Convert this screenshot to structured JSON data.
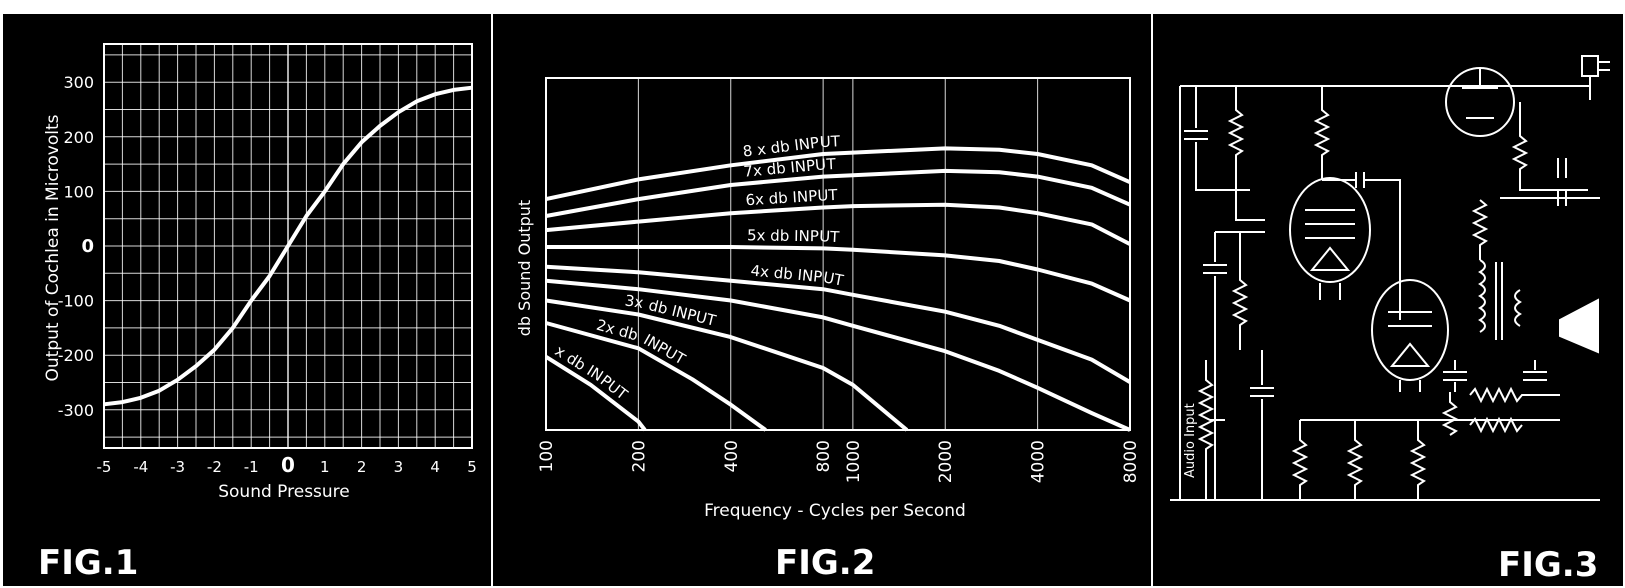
{
  "figures": {
    "fig1": {
      "label": "FIG.1"
    },
    "fig2": {
      "label": "FIG.2"
    },
    "fig3": {
      "label": "FIG.3",
      "input_label": "Audio Input"
    }
  },
  "colors": {
    "background": "#000000",
    "ink": "#ffffff",
    "page": "#ffffff"
  },
  "chart_data": [
    {
      "type": "line",
      "xlabel": "Sound Pressure",
      "ylabel": "Output of Cochlea in Microvolts",
      "xlim": [
        -5,
        5
      ],
      "ylim": [
        -370,
        370
      ],
      "x_ticks": [
        "-5",
        "-4",
        "-3",
        "-2",
        "-1",
        "0",
        "1",
        "2",
        "3",
        "4",
        "5"
      ],
      "y_ticks": [
        "300",
        "200",
        "100",
        "0",
        "-100",
        "-200",
        "-300"
      ],
      "grid": true,
      "series": [
        {
          "x": [
            -5,
            -4.5,
            -4,
            -3.5,
            -3,
            -2.5,
            -2,
            -1.5,
            -1,
            -0.5,
            0,
            0.5,
            1,
            1.5,
            2,
            2.5,
            3,
            3.5,
            4,
            4.5,
            5
          ],
          "values": [
            -290,
            -286,
            -278,
            -265,
            -245,
            -220,
            -190,
            -150,
            -100,
            -55,
            0,
            55,
            100,
            150,
            190,
            220,
            245,
            265,
            278,
            286,
            290
          ]
        }
      ]
    },
    {
      "type": "line",
      "xlabel": "Frequency - Cycles per Second",
      "ylabel": "db Sound Output",
      "x_scale": "log",
      "x_ticks": [
        "100",
        "200",
        "400",
        "800",
        "1000",
        "2000",
        "4000",
        "8000"
      ],
      "grid": true,
      "series": [
        {
          "name": "8 x db INPUT",
          "x": [
            100,
            200,
            400,
            800,
            1000,
            2000,
            3000,
            4000,
            6000,
            8000
          ],
          "values": [
            8.2,
            8.9,
            9.4,
            9.8,
            9.85,
            10.0,
            9.95,
            9.8,
            9.4,
            8.8
          ]
        },
        {
          "name": "7x db INPUT",
          "x": [
            100,
            200,
            400,
            800,
            1000,
            2000,
            3000,
            4000,
            6000,
            8000
          ],
          "values": [
            7.6,
            8.2,
            8.7,
            9.0,
            9.05,
            9.2,
            9.15,
            9.0,
            8.6,
            8.0
          ]
        },
        {
          "name": "6x db INPUT",
          "x": [
            100,
            200,
            400,
            800,
            1000,
            2000,
            3000,
            4000,
            6000,
            8000
          ],
          "values": [
            7.1,
            7.4,
            7.7,
            7.9,
            7.95,
            8.0,
            7.9,
            7.7,
            7.3,
            6.6
          ]
        },
        {
          "name": "5x db INPUT",
          "x": [
            100,
            200,
            400,
            800,
            1000,
            2000,
            3000,
            4000,
            6000,
            8000
          ],
          "values": [
            6.5,
            6.5,
            6.5,
            6.45,
            6.4,
            6.2,
            6.0,
            5.7,
            5.2,
            4.6
          ]
        },
        {
          "name": "4x db INPUT",
          "x": [
            100,
            200,
            400,
            800,
            1000,
            2000,
            3000,
            4000,
            6000,
            8000
          ],
          "values": [
            5.8,
            5.6,
            5.3,
            5.0,
            4.8,
            4.2,
            3.7,
            3.2,
            2.5,
            1.7
          ]
        },
        {
          "name": "",
          "x": [
            100,
            200,
            400,
            800,
            1000,
            2000,
            3000,
            4000,
            6000,
            8000
          ],
          "values": [
            5.3,
            5.0,
            4.6,
            4.0,
            3.7,
            2.8,
            2.1,
            1.5,
            0.6,
            0.0
          ]
        },
        {
          "name": "3x db INPUT",
          "x": [
            100,
            200,
            400,
            800,
            1000,
            1500
          ],
          "values": [
            4.6,
            4.1,
            3.3,
            2.2,
            1.6,
            0.0
          ]
        },
        {
          "name": "2x db INPUT",
          "x": [
            100,
            200,
            300,
            400,
            520
          ],
          "values": [
            3.8,
            2.9,
            1.8,
            0.9,
            0.0
          ]
        },
        {
          "name": "x db INPUT",
          "x": [
            100,
            140,
            200,
            210
          ],
          "values": [
            2.6,
            1.6,
            0.3,
            0.0
          ]
        }
      ]
    }
  ]
}
